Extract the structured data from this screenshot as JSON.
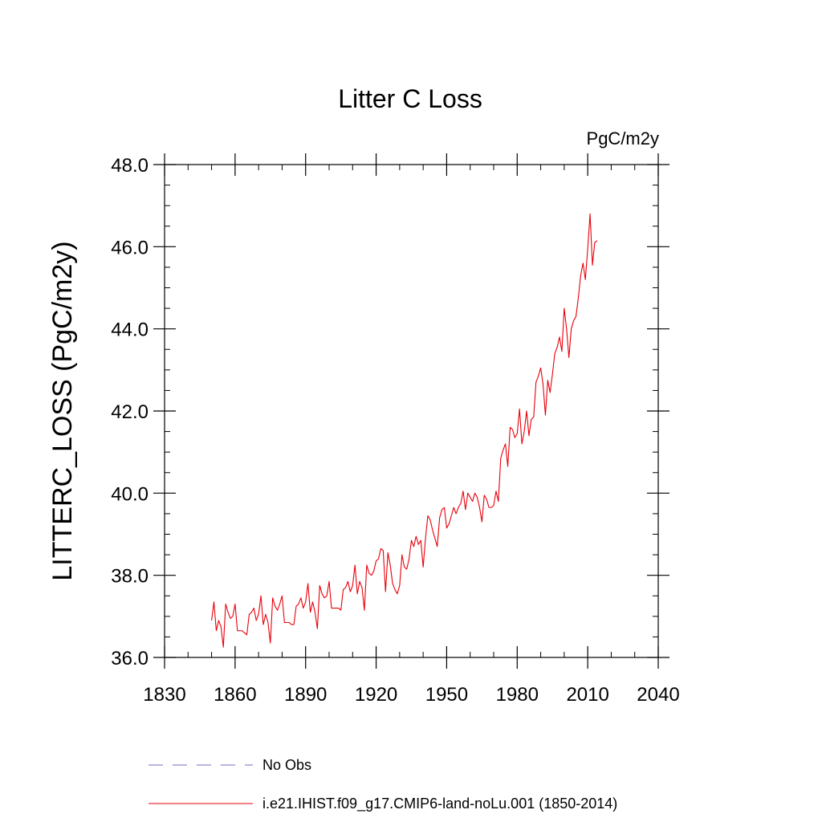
{
  "chart_data": {
    "type": "line",
    "title": "Litter C Loss",
    "units": "PgC/m2y",
    "ylabel": "LITTERC_LOSS  (PgC/m2y)",
    "xlim": [
      1830,
      2040
    ],
    "ylim": [
      36.0,
      48.0
    ],
    "x_ticks": [
      1830,
      1860,
      1890,
      1920,
      1950,
      1980,
      2010,
      2040
    ],
    "y_ticks": [
      36.0,
      38.0,
      40.0,
      42.0,
      44.0,
      46.0,
      48.0
    ],
    "y_tick_labels": [
      "36.0",
      "38.0",
      "40.0",
      "42.0",
      "44.0",
      "46.0",
      "48.0"
    ],
    "x_minor_step": 10,
    "y_minor_step": 0.5,
    "legend": [
      {
        "label": "No Obs",
        "color": "#7b68c8",
        "style": "dashed"
      },
      {
        "label": "i.e21.IHIST.f09_g17.CMIP6-land-noLu.001 (1850-2014)",
        "color": "#e8000b",
        "style": "solid"
      }
    ],
    "series": [
      {
        "color": "#e8000b",
        "x_start": 1850,
        "x_step": 1,
        "values": [
          36.9,
          37.35,
          36.65,
          36.9,
          36.75,
          36.25,
          37.3,
          37.1,
          36.95,
          37.0,
          37.3,
          36.65,
          36.65,
          36.65,
          36.6,
          36.55,
          37.05,
          37.1,
          37.2,
          36.9,
          37.05,
          37.5,
          36.8,
          37.05,
          36.85,
          36.35,
          37.45,
          37.25,
          37.15,
          37.3,
          37.5,
          36.85,
          36.85,
          36.85,
          36.8,
          36.8,
          37.25,
          37.3,
          37.45,
          37.2,
          37.35,
          37.8,
          37.1,
          37.35,
          37.1,
          36.7,
          37.75,
          37.55,
          37.45,
          37.5,
          37.85,
          37.2,
          37.2,
          37.2,
          37.2,
          37.15,
          37.65,
          37.7,
          37.85,
          37.6,
          37.75,
          38.25,
          37.55,
          37.85,
          37.7,
          37.15,
          38.25,
          38.05,
          38.0,
          38.1,
          38.35,
          38.4,
          38.65,
          38.6,
          37.6,
          38.55,
          38.25,
          37.8,
          37.65,
          37.55,
          37.75,
          38.5,
          38.2,
          38.15,
          38.4,
          38.85,
          38.7,
          38.95,
          38.75,
          38.85,
          38.2,
          38.9,
          39.45,
          39.35,
          39.1,
          38.9,
          38.7,
          39.4,
          39.6,
          39.65,
          39.15,
          39.25,
          39.45,
          39.65,
          39.5,
          39.65,
          39.75,
          40.05,
          39.6,
          40.0,
          39.9,
          39.8,
          40.0,
          39.9,
          39.65,
          39.3,
          39.95,
          39.85,
          39.65,
          39.65,
          39.7,
          40.05,
          39.8,
          40.85,
          41.05,
          41.2,
          40.65,
          41.6,
          41.55,
          41.35,
          41.45,
          42.05,
          41.2,
          41.5,
          42.0,
          41.4,
          41.8,
          41.85,
          42.7,
          42.85,
          43.05,
          42.65,
          41.9,
          42.75,
          42.45,
          42.9,
          43.4,
          43.55,
          43.8,
          43.45,
          44.5,
          44.0,
          43.3,
          44.0,
          44.2,
          44.3,
          44.75,
          45.3,
          45.6,
          45.2,
          45.95,
          46.8,
          45.55,
          46.1,
          46.15
        ]
      }
    ]
  }
}
